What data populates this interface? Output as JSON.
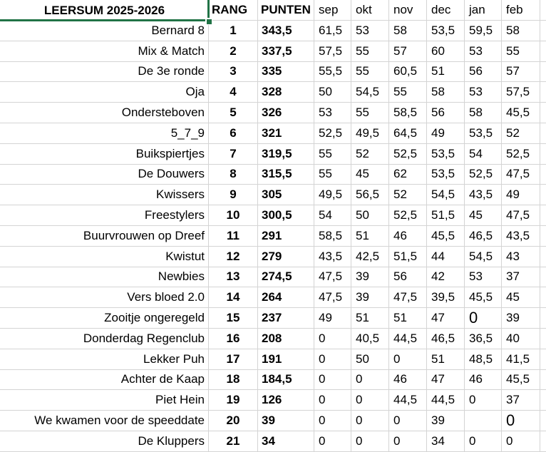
{
  "sheet": {
    "title": "LEERSUM  2025-2026",
    "columns": [
      "RANG",
      "PUNTEN",
      "sep",
      "okt",
      "nov",
      "dec",
      "jan",
      "feb"
    ],
    "teams": [
      {
        "name": "Bernard 8",
        "rang": "1",
        "punten": "343,5",
        "months": [
          "61,5",
          "53",
          "58",
          "53,5",
          "59,5",
          "58"
        ],
        "large": []
      },
      {
        "name": "Mix & Match",
        "rang": "2",
        "punten": "337,5",
        "months": [
          "57,5",
          "55",
          "57",
          "60",
          "53",
          "55"
        ],
        "large": []
      },
      {
        "name": "De 3e ronde",
        "rang": "3",
        "punten": "335",
        "months": [
          "55,5",
          "55",
          "60,5",
          "51",
          "56",
          "57"
        ],
        "large": []
      },
      {
        "name": "Oja",
        "rang": "4",
        "punten": "328",
        "months": [
          "50",
          "54,5",
          "55",
          "58",
          "53",
          "57,5"
        ],
        "large": []
      },
      {
        "name": "Ondersteboven",
        "rang": "5",
        "punten": "326",
        "months": [
          "53",
          "55",
          "58,5",
          "56",
          "58",
          "45,5"
        ],
        "large": []
      },
      {
        "name": "5_7_9",
        "rang": "6",
        "punten": "321",
        "months": [
          "52,5",
          "49,5",
          "64,5",
          "49",
          "53,5",
          "52"
        ],
        "large": []
      },
      {
        "name": "Buikspiertjes",
        "rang": "7",
        "punten": "319,5",
        "months": [
          "55",
          "52",
          "52,5",
          "53,5",
          "54",
          "52,5"
        ],
        "large": []
      },
      {
        "name": "De Douwers",
        "rang": "8",
        "punten": "315,5",
        "months": [
          "55",
          "45",
          "62",
          "53,5",
          "52,5",
          "47,5"
        ],
        "large": []
      },
      {
        "name": "Kwissers",
        "rang": "9",
        "punten": "305",
        "months": [
          "49,5",
          "56,5",
          "52",
          "54,5",
          "43,5",
          "49"
        ],
        "large": []
      },
      {
        "name": "Freestylers",
        "rang": "10",
        "punten": "300,5",
        "months": [
          "54",
          "50",
          "52,5",
          "51,5",
          "45",
          "47,5"
        ],
        "large": []
      },
      {
        "name": "Buurvrouwen op Dreef",
        "rang": "11",
        "punten": "291",
        "months": [
          "58,5",
          "51",
          "46",
          "45,5",
          "46,5",
          "43,5"
        ],
        "large": []
      },
      {
        "name": "Kwistut",
        "rang": "12",
        "punten": "279",
        "months": [
          "43,5",
          "42,5",
          "51,5",
          "44",
          "54,5",
          "43"
        ],
        "large": []
      },
      {
        "name": "Newbies",
        "rang": "13",
        "punten": "274,5",
        "months": [
          "47,5",
          "39",
          "56",
          "42",
          "53",
          "37"
        ],
        "large": []
      },
      {
        "name": "Vers bloed 2.0",
        "rang": "14",
        "punten": "264",
        "months": [
          "47,5",
          "39",
          "47,5",
          "39,5",
          "45,5",
          "45"
        ],
        "large": []
      },
      {
        "name": "Zooitje ongeregeld",
        "rang": "15",
        "punten": "237",
        "months": [
          "49",
          "51",
          "51",
          "47",
          "0",
          "39"
        ],
        "large": [
          4
        ]
      },
      {
        "name": "Donderdag Regenclub",
        "rang": "16",
        "punten": "208",
        "months": [
          "0",
          "40,5",
          "44,5",
          "46,5",
          "36,5",
          "40"
        ],
        "large": []
      },
      {
        "name": "Lekker Puh",
        "rang": "17",
        "punten": "191",
        "months": [
          "0",
          "50",
          "0",
          "51",
          "48,5",
          "41,5"
        ],
        "large": []
      },
      {
        "name": "Achter de Kaap",
        "rang": "18",
        "punten": "184,5",
        "months": [
          "0",
          "0",
          "46",
          "47",
          "46",
          "45,5"
        ],
        "large": []
      },
      {
        "name": "Piet Hein",
        "rang": "19",
        "punten": "126",
        "months": [
          "0",
          "0",
          "44,5",
          "44,5",
          "0",
          "37"
        ],
        "large": []
      },
      {
        "name": "We kwamen voor de speeddate",
        "rang": "20",
        "punten": "39",
        "months": [
          "0",
          "0",
          "0",
          "39",
          "",
          "0"
        ],
        "large": [
          5
        ]
      },
      {
        "name": "De Kluppers",
        "rang": "21",
        "punten": "34",
        "months": [
          "0",
          "0",
          "0",
          "34",
          "0",
          "0"
        ],
        "large": []
      }
    ],
    "colors": {
      "selection_green": "#217346",
      "gridline": "#d4d4d4",
      "text": "#000000",
      "background": "#ffffff"
    }
  }
}
